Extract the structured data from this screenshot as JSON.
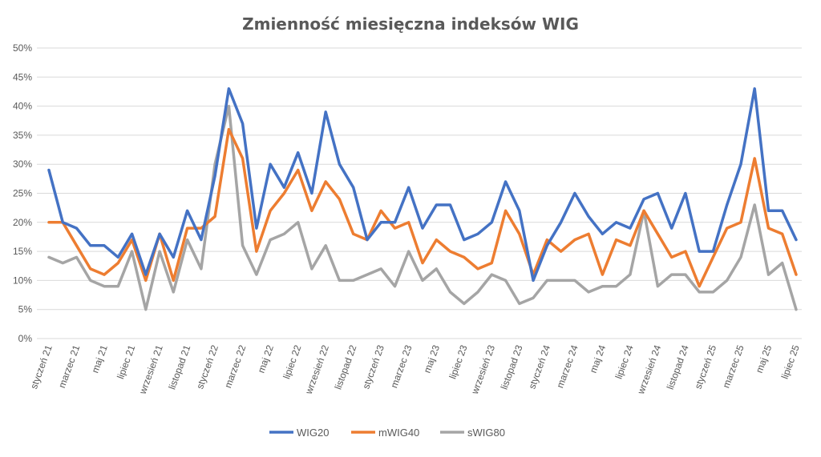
{
  "chart_data": {
    "type": "line",
    "title": "Zmienność miesięczna indeksów WIG",
    "xlabel": "",
    "ylabel": "",
    "ylim": [
      0,
      50
    ],
    "yticks": [
      "0%",
      "5%",
      "10%",
      "15%",
      "20%",
      "25%",
      "30%",
      "35%",
      "40%",
      "45%",
      "50%"
    ],
    "grid": true,
    "legend_position": "bottom",
    "x_labels": [
      "styczeń 21",
      "marzec 21",
      "maj 21",
      "lipiec 21",
      "wrzesień 21",
      "listopad 21",
      "styczeń 22",
      "marzec 22",
      "maj 22",
      "lipiec 22",
      "wrzesień 22",
      "listopad 22",
      "styczeń 23",
      "marzec 23",
      "maj 23",
      "lipiec 23",
      "wrzesień 23",
      "listopad 23",
      "styczeń 24",
      "marzec 24",
      "maj 24",
      "lipiec 24",
      "wrzesień 24",
      "listopad 24",
      "styczeń 25",
      "marzec 25",
      "maj 25",
      "lipiec 25"
    ],
    "x_label_step": 2,
    "series": [
      {
        "name": "WIG20",
        "color": "#4472c4",
        "values": [
          29,
          20,
          19,
          16,
          16,
          14,
          18,
          11,
          18,
          14,
          22,
          17,
          28,
          43,
          37,
          19,
          30,
          26,
          32,
          25,
          39,
          30,
          26,
          17,
          20,
          20,
          26,
          19,
          23,
          23,
          17,
          18,
          20,
          27,
          22,
          10,
          16,
          20,
          25,
          21,
          18,
          20,
          19,
          24,
          25,
          19,
          25,
          15,
          15,
          23,
          30,
          43,
          22,
          22,
          17
        ]
      },
      {
        "name": "mWIG40",
        "color": "#ed7d31",
        "values": [
          20,
          20,
          16,
          12,
          11,
          13,
          17,
          10,
          18,
          10,
          19,
          19,
          21,
          36,
          31,
          15,
          22,
          25,
          29,
          22,
          27,
          24,
          18,
          17,
          22,
          19,
          20,
          13,
          17,
          15,
          14,
          12,
          13,
          22,
          18,
          11,
          17,
          15,
          17,
          18,
          11,
          17,
          16,
          22,
          18,
          14,
          15,
          9,
          14,
          19,
          20,
          31,
          19,
          18,
          11
        ]
      },
      {
        "name": "sWIG80",
        "color": "#a5a5a5",
        "values": [
          14,
          13,
          14,
          10,
          9,
          9,
          15,
          5,
          15,
          8,
          17,
          12,
          30,
          40,
          16,
          11,
          17,
          18,
          20,
          12,
          16,
          10,
          10,
          11,
          12,
          9,
          15,
          10,
          12,
          8,
          6,
          8,
          11,
          10,
          6,
          7,
          10,
          10,
          10,
          8,
          9,
          9,
          11,
          22,
          9,
          11,
          11,
          8,
          8,
          10,
          14,
          23,
          11,
          13,
          5
        ]
      }
    ]
  }
}
